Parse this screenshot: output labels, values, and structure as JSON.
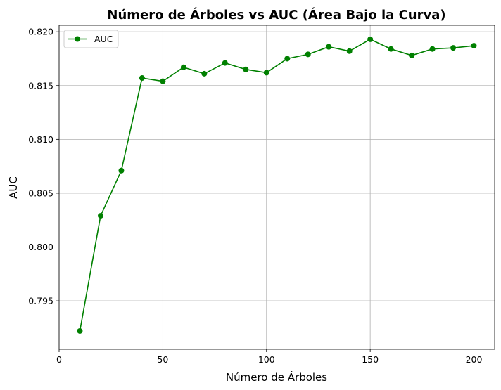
{
  "chart_data": {
    "type": "line",
    "title": "Número de Árboles vs AUC (Área Bajo la Curva)",
    "xlabel": "Número de Árboles",
    "ylabel": "AUC",
    "xlim": [
      0,
      210
    ],
    "ylim": [
      0.7905,
      0.8206
    ],
    "xticks": [
      0,
      50,
      100,
      150,
      200
    ],
    "xtick_labels": [
      "0",
      "50",
      "100",
      "150",
      "200"
    ],
    "yticks": [
      0.795,
      0.8,
      0.805,
      0.81,
      0.815,
      0.82
    ],
    "ytick_labels": [
      "0.795",
      "0.800",
      "0.805",
      "0.810",
      "0.815",
      "0.820"
    ],
    "grid": true,
    "legend": {
      "position": "top-left"
    },
    "series": [
      {
        "name": "AUC",
        "color": "#008000",
        "marker": "circle",
        "x": [
          10,
          20,
          30,
          40,
          50,
          60,
          70,
          80,
          90,
          100,
          110,
          120,
          130,
          140,
          150,
          160,
          170,
          180,
          190,
          200
        ],
        "y": [
          0.7922,
          0.8029,
          0.8071,
          0.8157,
          0.8154,
          0.8167,
          0.8161,
          0.8171,
          0.8165,
          0.8162,
          0.8175,
          0.8179,
          0.8186,
          0.8182,
          0.8193,
          0.8184,
          0.8178,
          0.8184,
          0.8185,
          0.8187
        ]
      }
    ]
  }
}
